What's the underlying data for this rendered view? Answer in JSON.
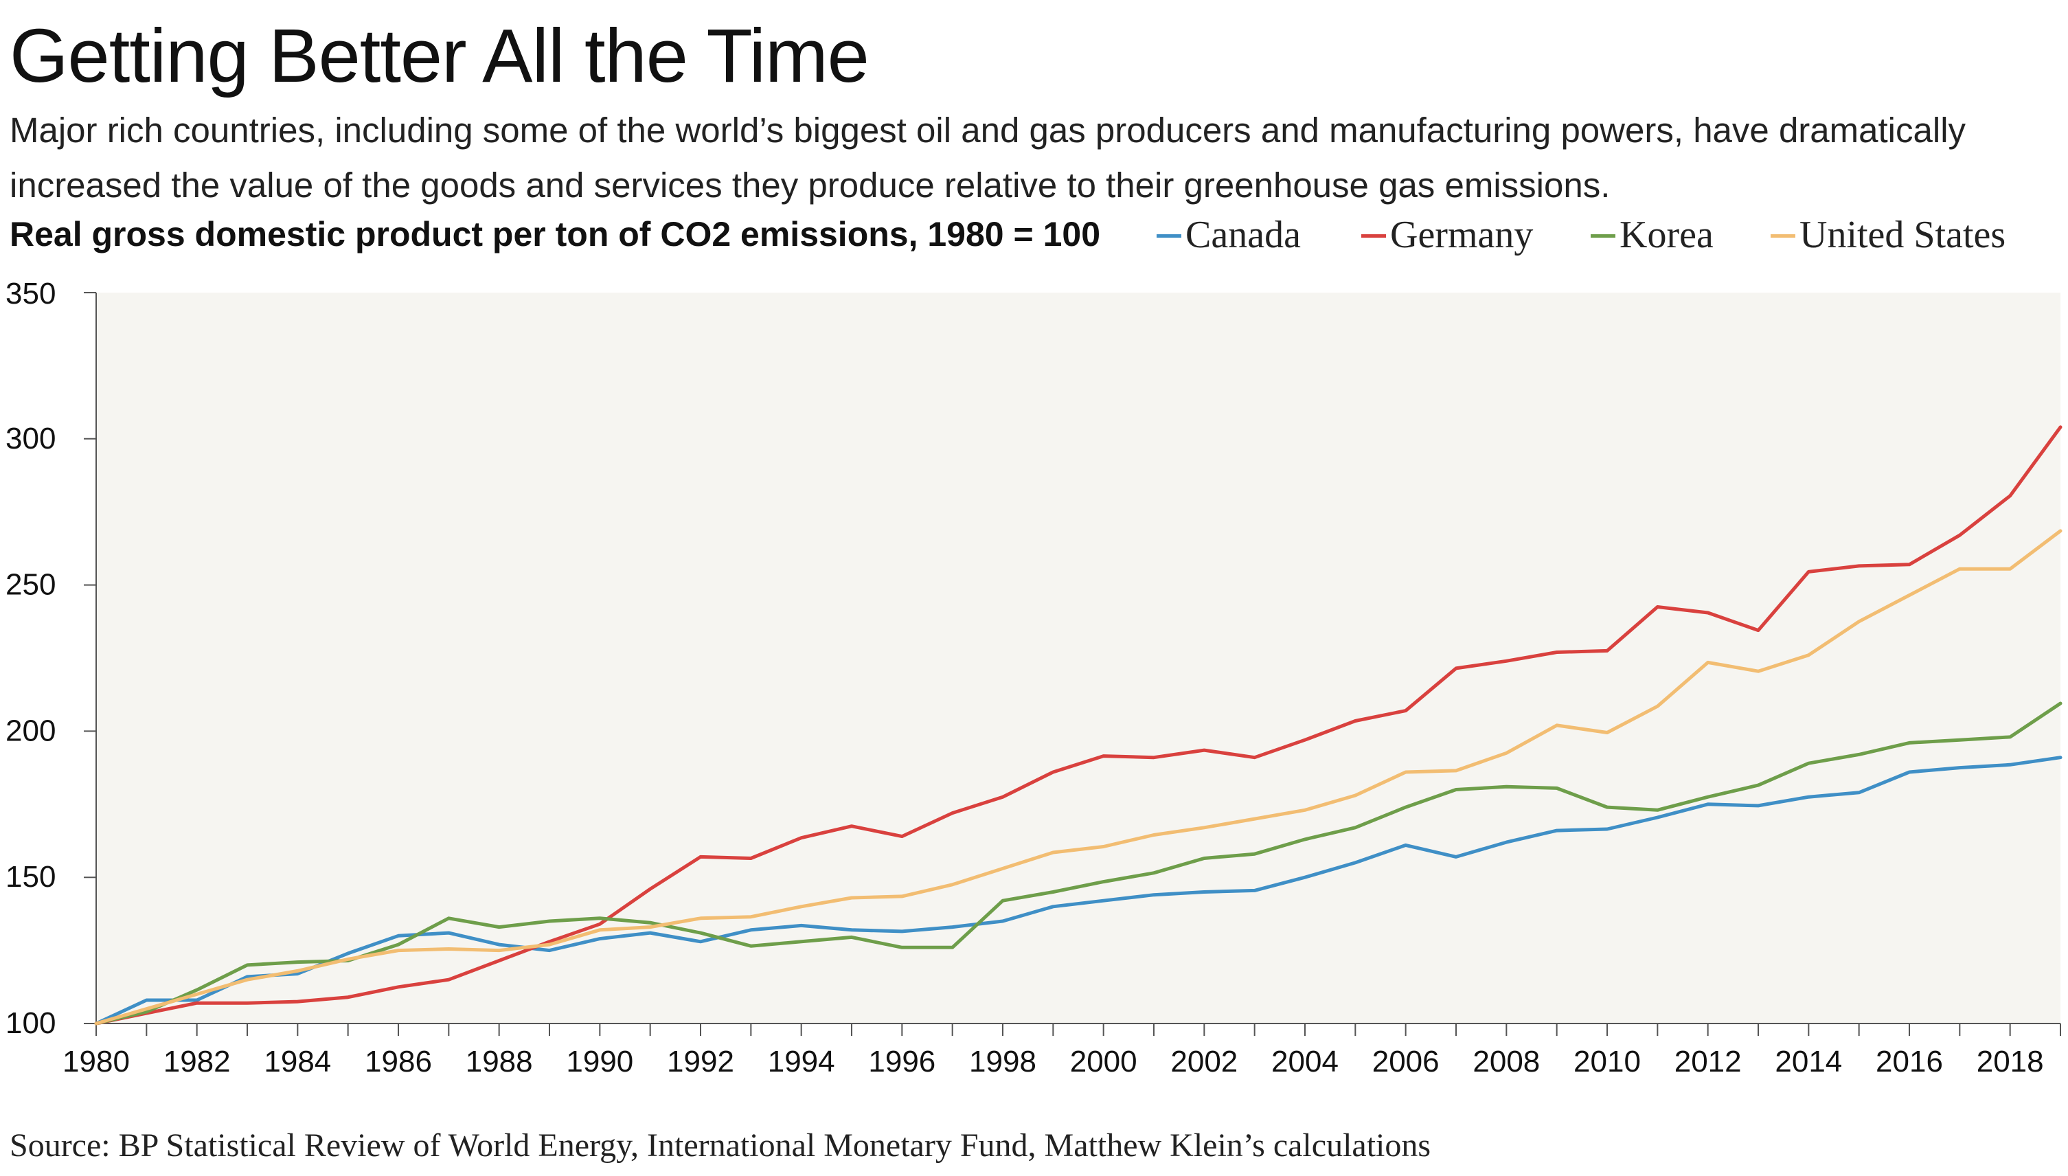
{
  "title": "Getting Better All the Time",
  "subtitle": "Major rich countries, including some of the world’s biggest oil and gas producers and manufacturing powers, have dramatically increased the value of the goods and services they produce relative to their greenhouse gas emissions.",
  "chart_label": "Real gross domestic product per ton of CO2 emissions, 1980 = 100",
  "source": "Source: BP Statistical Review of World Energy, International Monetary Fund, Matthew Klein’s calculations",
  "colors": {
    "canada": "#3f8fc6",
    "germany": "#d9413e",
    "korea": "#6e9e4a",
    "united_states": "#f2bd72",
    "plot_bg": "#f6f5f1",
    "axis": "#555555"
  },
  "legend": [
    {
      "label": "Canada",
      "color": "#3f8fc6"
    },
    {
      "label": "Germany",
      "color": "#d9413e"
    },
    {
      "label": "Korea",
      "color": "#6e9e4a"
    },
    {
      "label": "United States",
      "color": "#f2bd72"
    }
  ],
  "chart_data": {
    "type": "line",
    "title": "Getting Better All the Time",
    "ylabel": "Real gross domestic product per ton of CO2 emissions, 1980 = 100",
    "xlabel": "",
    "xlim": [
      1980,
      2019
    ],
    "ylim": [
      100,
      350
    ],
    "x_ticks": [
      "1980",
      "1982",
      "1984",
      "1986",
      "1988",
      "1990",
      "1992",
      "1994",
      "1996",
      "1998",
      "2000",
      "2002",
      "2004",
      "2006",
      "2008",
      "2010",
      "2012",
      "2014",
      "2016",
      "2018"
    ],
    "y_ticks": [
      "100",
      "150",
      "200",
      "250",
      "300",
      "350"
    ],
    "grid": false,
    "legend_position": "top-right",
    "x": [
      1980,
      1981,
      1982,
      1983,
      1984,
      1985,
      1986,
      1987,
      1988,
      1989,
      1990,
      1991,
      1992,
      1993,
      1994,
      1995,
      1996,
      1997,
      1998,
      1999,
      2000,
      2001,
      2002,
      2003,
      2004,
      2005,
      2006,
      2007,
      2008,
      2009,
      2010,
      2011,
      2012,
      2013,
      2014,
      2015,
      2016,
      2017,
      2018,
      2019
    ],
    "series": [
      {
        "name": "Canada",
        "color": "#3f8fc6",
        "values": [
          100,
          108,
          108,
          116,
          117,
          124,
          130,
          131,
          127,
          125,
          129,
          131,
          128,
          132,
          133.5,
          132,
          131.5,
          133,
          135,
          140,
          142,
          144,
          145,
          145.5,
          150,
          155,
          161,
          157,
          162,
          166,
          166.5,
          170.5,
          175,
          174.5,
          177.5,
          179,
          186,
          187.5,
          188.5,
          191
        ]
      },
      {
        "name": "Germany",
        "color": "#d9413e",
        "values": [
          100,
          103.5,
          107,
          107,
          107.5,
          109,
          112.5,
          115,
          121.5,
          128,
          134,
          146,
          157,
          156.5,
          163.5,
          167.5,
          164,
          172,
          177.5,
          186,
          191.5,
          191,
          193.5,
          191,
          197,
          203.5,
          207,
          221.5,
          224,
          227,
          227.5,
          242.5,
          240.5,
          234.5,
          254.5,
          256.5,
          257,
          267,
          280.5,
          304
        ]
      },
      {
        "name": "Korea",
        "color": "#6e9e4a",
        "values": [
          100,
          104,
          111.5,
          120,
          121,
          121.5,
          127,
          136,
          133,
          135,
          136,
          134.5,
          131,
          126.5,
          128,
          129.5,
          126,
          126,
          142,
          145,
          148.5,
          151.5,
          156.5,
          158,
          163,
          167,
          174,
          180,
          181,
          180.5,
          174,
          173,
          177.5,
          181.5,
          189,
          192,
          196,
          197,
          198,
          209.5
        ]
      },
      {
        "name": "United States",
        "color": "#f2bd72",
        "values": [
          100,
          105,
          110,
          115,
          118,
          122,
          125,
          125.5,
          125,
          127,
          132,
          133,
          136,
          136.5,
          140,
          143,
          143.5,
          147.5,
          153,
          158.5,
          160.5,
          164.5,
          167,
          170,
          173,
          178,
          186,
          186.5,
          192.5,
          202,
          199.5,
          208.5,
          223.5,
          220.5,
          226,
          237.5,
          246.5,
          255.5,
          255.5,
          268.5
        ]
      }
    ]
  }
}
